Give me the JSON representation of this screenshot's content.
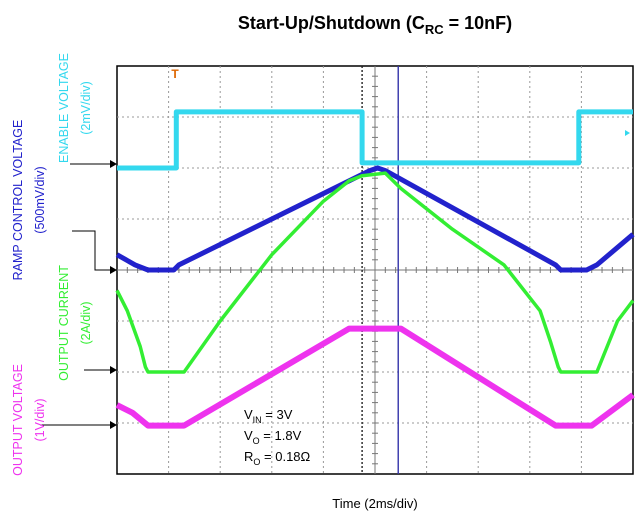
{
  "chart_data": {
    "type": "line",
    "title": {
      "main": "Start-Up/Shutdown (C",
      "sub": "RC",
      "end": " = 10nF)"
    },
    "xlabel": "Time (2ms/div)",
    "x_per_div_ms": 2,
    "divisions": {
      "x": 10,
      "y": 8
    },
    "grid": true,
    "trigger_marker": "T",
    "annotations": [
      {
        "main": "V",
        "sub": "IN",
        "end": " = 3V"
      },
      {
        "main": "V",
        "sub": "O",
        "end": " = 1.8V"
      },
      {
        "main": "R",
        "sub": "O",
        "end": " = 0.18Ω"
      }
    ],
    "series": [
      {
        "name": "ENABLE VOLTAGE",
        "scale": "(2mV/div)",
        "color": "#33d8ee",
        "x": [
          0,
          1.15,
          1.15,
          4.75,
          4.75,
          8.95,
          8.95,
          10
        ],
        "y": [
          6,
          6,
          7.1,
          7.1,
          6.1,
          6.1,
          7.1,
          7.1
        ]
      },
      {
        "name": "RAMP CONTROL VOLTAGE",
        "scale": "(500mV/div)",
        "color": "#2222cc",
        "x": [
          0,
          0.35,
          0.6,
          1.1,
          1.2,
          4.9,
          5.05,
          5.2,
          8.5,
          8.6,
          9.1,
          9.3,
          10
        ],
        "y": [
          4.3,
          4.1,
          4.0,
          4.0,
          4.1,
          5.95,
          6.0,
          5.95,
          4.1,
          4.0,
          4.0,
          4.1,
          4.7
        ]
      },
      {
        "name": "OUTPUT CURRENT",
        "scale": "(2A/div)",
        "color": "#33ee33",
        "x": [
          0,
          0.2,
          0.45,
          0.55,
          0.6,
          1.3,
          2.0,
          3.0,
          4.0,
          4.5,
          4.75,
          5.2,
          5.5,
          6.5,
          7.5,
          8.2,
          8.4,
          8.55,
          8.6,
          9.3,
          9.7,
          10
        ],
        "y": [
          3.6,
          3.2,
          2.5,
          2.1,
          2.0,
          2.0,
          3.0,
          4.3,
          5.35,
          5.75,
          5.85,
          5.9,
          5.6,
          4.8,
          4.1,
          3.2,
          2.6,
          2.1,
          2.0,
          2.0,
          3.0,
          3.4
        ]
      },
      {
        "name": "OUTPUT VOLTAGE",
        "scale": "(1V/div)",
        "color": "#ee33ee",
        "x": [
          0,
          0.3,
          0.6,
          1.3,
          4.5,
          5.5,
          8.5,
          8.6,
          9.2,
          10
        ],
        "y": [
          1.35,
          1.2,
          0.95,
          0.95,
          2.85,
          2.85,
          0.95,
          0.95,
          0.95,
          1.55
        ]
      }
    ]
  }
}
